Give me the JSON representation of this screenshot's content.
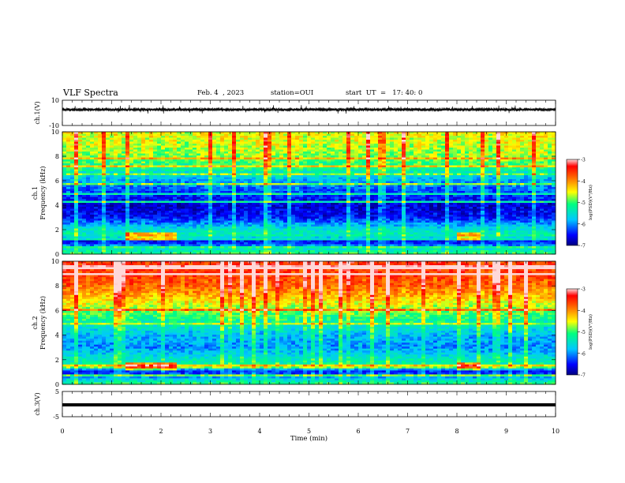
{
  "header": {
    "title": "VLF Spectra",
    "date": "Feb. 4  , 2023",
    "station": "station=OUI",
    "start_ut": "start  UT  =   17: 40: 0"
  },
  "chart_data": [
    {
      "type": "line",
      "panel": "ch1-waveform",
      "ylabel": "ch.1(V)",
      "ylim": [
        -10,
        10
      ],
      "yticks": [
        "10",
        "-10"
      ],
      "xlim": [
        0,
        10
      ],
      "mean_level": 2.5,
      "amplitude_peak": 1.8
    },
    {
      "type": "heatmap",
      "panel": "ch1-spectrogram",
      "ylabel": "ch.1\nFrequency (kHz)",
      "ylabel_lines": [
        "ch.1",
        "Frequency  (kHz)"
      ],
      "ylim": [
        0,
        10
      ],
      "yticks": [
        "0",
        "2",
        "4",
        "6",
        "8",
        "10"
      ],
      "xlim": [
        0,
        10
      ],
      "colorbar": {
        "label": "log(PSD)(V²/Hz)",
        "range": [
          -7,
          -3
        ],
        "ticks": [
          "-3",
          "-4",
          "-5",
          "-6",
          "-7"
        ]
      },
      "level_profile_kHz": [
        {
          "f": 0,
          "v": -5.0
        },
        {
          "f": 0.5,
          "v": -5.6
        },
        {
          "f": 1.0,
          "v": -6.6
        },
        {
          "f": 1.5,
          "v": -5.3
        },
        {
          "f": 2.0,
          "v": -5.5
        },
        {
          "f": 3.0,
          "v": -6.5
        },
        {
          "f": 4.0,
          "v": -6.7
        },
        {
          "f": 5.0,
          "v": -6.3
        },
        {
          "f": 6.0,
          "v": -5.9
        },
        {
          "f": 7.0,
          "v": -5.2
        },
        {
          "f": 8.0,
          "v": -4.8
        },
        {
          "f": 9.0,
          "v": -4.6
        },
        {
          "f": 10.0,
          "v": -4.5
        }
      ]
    },
    {
      "type": "heatmap",
      "panel": "ch2-spectrogram",
      "ylabel": "ch.2\nFrequency (kHz)",
      "ylabel_lines": [
        "ch.2",
        "Frequency  (kHz)"
      ],
      "ylim": [
        0,
        10
      ],
      "yticks": [
        "0",
        "2",
        "4",
        "6",
        "8",
        "10"
      ],
      "xlim": [
        0,
        10
      ],
      "colorbar": {
        "label": "log(PSD)(V²/Hz)",
        "range": [
          -7,
          -3
        ],
        "ticks": [
          "-3",
          "-4",
          "-5",
          "-6",
          "-7"
        ]
      },
      "level_profile_kHz": [
        {
          "f": 0,
          "v": -5.0
        },
        {
          "f": 0.5,
          "v": -5.8
        },
        {
          "f": 1.0,
          "v": -6.5
        },
        {
          "f": 1.5,
          "v": -5.2
        },
        {
          "f": 2.0,
          "v": -5.4
        },
        {
          "f": 3.0,
          "v": -6.0
        },
        {
          "f": 4.0,
          "v": -5.8
        },
        {
          "f": 5.0,
          "v": -5.3
        },
        {
          "f": 6.0,
          "v": -4.8
        },
        {
          "f": 7.0,
          "v": -4.3
        },
        {
          "f": 8.0,
          "v": -3.8
        },
        {
          "f": 9.0,
          "v": -3.6
        },
        {
          "f": 10.0,
          "v": -3.5
        }
      ]
    },
    {
      "type": "line",
      "panel": "ch3-waveform",
      "ylabel": "ch.3(V)",
      "ylim": [
        -5,
        5
      ],
      "yticks": [
        "5",
        "-5"
      ],
      "xlim": [
        0,
        10
      ],
      "xlabel": "Time  (min)",
      "xticks": [
        "0",
        "1",
        "2",
        "3",
        "4",
        "5",
        "6",
        "7",
        "8",
        "9",
        "10"
      ],
      "mean_level": -0.3
    }
  ]
}
